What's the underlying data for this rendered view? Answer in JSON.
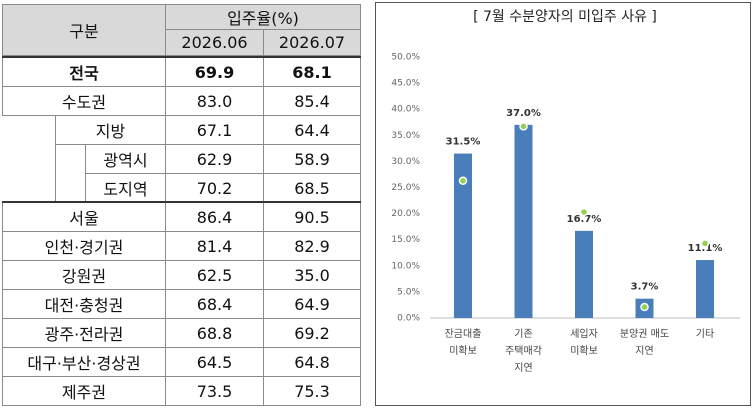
{
  "table": {
    "header": {
      "label": "구분",
      "group": "입주율(%)",
      "columns": [
        "2026.06",
        "2026.07"
      ]
    },
    "rows": [
      [
        "전국",
        "69.9",
        "68.1"
      ],
      [
        "수도권",
        "83.0",
        "85.4"
      ],
      [
        "지방",
        "67.1",
        "64.4"
      ],
      [
        "광역시",
        "62.9",
        "58.9"
      ],
      [
        "도지역",
        "70.2",
        "68.5"
      ],
      [
        "서울",
        "86.4",
        "90.5"
      ],
      [
        "인천·경기권",
        "81.4",
        "82.9"
      ],
      [
        "강원권",
        "62.5",
        "35.0"
      ],
      [
        "대전·충청권",
        "68.4",
        "64.9"
      ],
      [
        "광주·전라권",
        "68.8",
        "69.2"
      ],
      [
        "대구·부산·경상권",
        "64.5",
        "64.8"
      ],
      [
        "제주권",
        "73.5",
        "75.3"
      ]
    ]
  },
  "chart_data": {
    "type": "bar",
    "title": "[ 7월 수분양자의 미입주 사유 ]",
    "categories": [
      "잔금대출\n미확보",
      "기존\n주택매각\n지연",
      "세입자\n미확보",
      "분양권 매도\n지연",
      "기타"
    ],
    "series": [
      {
        "color": "#4a7ebb",
        "values": [
          31.5,
          37.0,
          16.7,
          3.7,
          11.1
        ],
        "value_labels": [
          "31.5%",
          "37.0%",
          "16.7%",
          "3.7%",
          "11.1%"
        ]
      },
      {
        "color": "#92d050",
        "values": [
          26.3,
          36.7,
          20.3,
          2.1,
          14.3
        ]
      }
    ],
    "ylim": [
      0,
      50
    ],
    "yticks": [
      {
        "value": 0,
        "label": "0.0%"
      },
      {
        "value": 5,
        "label": "5.0%"
      },
      {
        "value": 10,
        "label": "10.0%"
      },
      {
        "value": 15,
        "label": "15.0%"
      },
      {
        "value": 20,
        "label": "20.0%"
      },
      {
        "value": 25,
        "label": "25.0%"
      },
      {
        "value": 30,
        "label": "30.0%"
      },
      {
        "value": 35,
        "label": "35.0%"
      },
      {
        "value": 40,
        "label": "40.0%"
      },
      {
        "value": 45,
        "label": "45.0%"
      },
      {
        "value": 50,
        "label": "50.0%"
      }
    ],
    "grid": false
  }
}
